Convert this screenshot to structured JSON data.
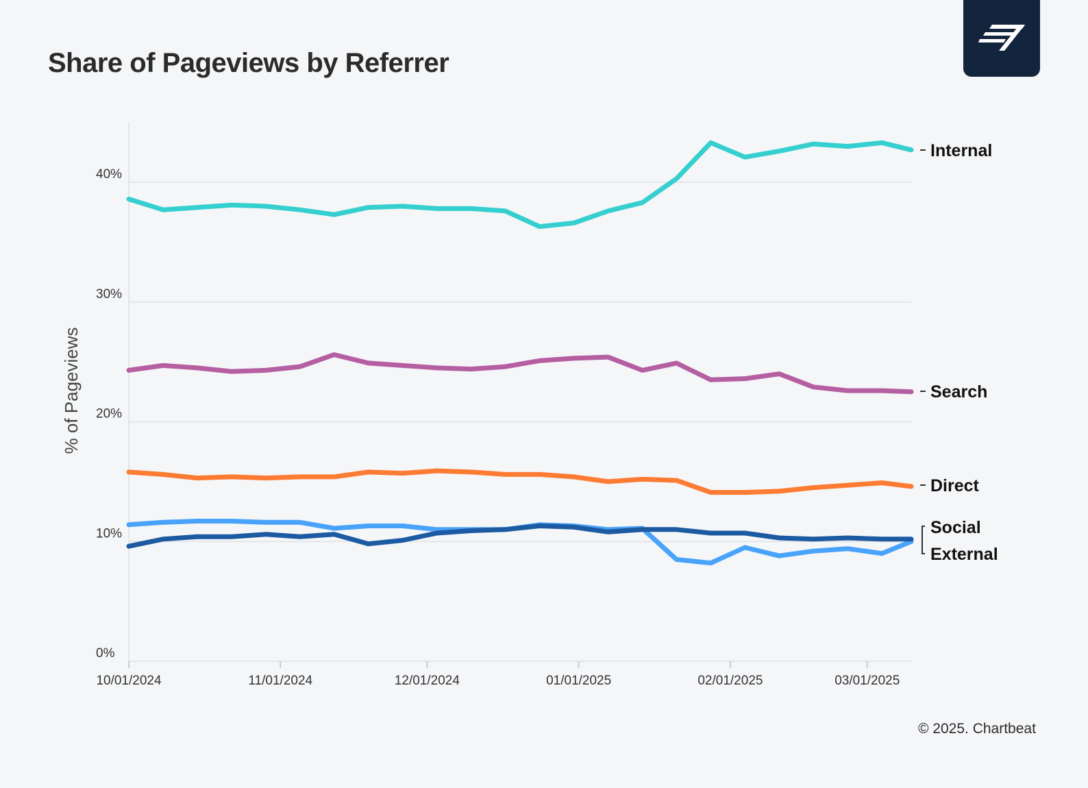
{
  "title": "Share of Pageviews by Referrer",
  "footer": "© 2025. Chartbeat",
  "logo_icon": "chartbeat-logo-icon",
  "chart_data": {
    "type": "line",
    "ylabel": "% of Pageviews",
    "ylim": [
      0,
      45
    ],
    "yticks": [
      0,
      10,
      20,
      30,
      40
    ],
    "ytick_labels": [
      "0%",
      "10%",
      "20%",
      "30%",
      "40%"
    ],
    "xlim": [
      "2024-10-01",
      "2025-03-10"
    ],
    "xtick_dates": [
      "2024-10-01",
      "2024-11-01",
      "2024-12-01",
      "2025-01-01",
      "2025-02-01",
      "2025-03-01"
    ],
    "xtick_labels": [
      "10/01/2024",
      "11/01/2024",
      "12/01/2024",
      "01/01/2025",
      "02/01/2025",
      "03/01/2025"
    ],
    "grid": true,
    "legend": "right-end labels",
    "x": [
      "2024-10-01",
      "2024-10-08",
      "2024-10-15",
      "2024-10-22",
      "2024-10-29",
      "2024-11-05",
      "2024-11-12",
      "2024-11-19",
      "2024-11-26",
      "2024-12-03",
      "2024-12-10",
      "2024-12-17",
      "2024-12-24",
      "2024-12-31",
      "2025-01-07",
      "2025-01-14",
      "2025-01-21",
      "2025-01-28",
      "2025-02-04",
      "2025-02-11",
      "2025-02-18",
      "2025-02-25",
      "2025-03-04",
      "2025-03-10"
    ],
    "series": [
      {
        "name": "Internal",
        "color": "#36cfd0",
        "values": [
          38.6,
          37.7,
          37.9,
          38.1,
          38.0,
          37.7,
          37.3,
          37.9,
          38.0,
          37.8,
          37.8,
          37.6,
          36.3,
          36.6,
          37.6,
          38.3,
          40.3,
          43.3,
          42.1,
          42.6,
          43.2,
          43.0,
          43.3,
          42.7
        ]
      },
      {
        "name": "Search",
        "color": "#b55fa3",
        "values": [
          24.3,
          24.7,
          24.5,
          24.2,
          24.3,
          24.6,
          25.6,
          24.9,
          24.7,
          24.5,
          24.4,
          24.6,
          25.1,
          25.3,
          25.4,
          24.3,
          24.9,
          23.5,
          23.6,
          24.0,
          22.9,
          22.6,
          22.6,
          22.5
        ]
      },
      {
        "name": "Direct",
        "color": "#fd7b32",
        "values": [
          15.8,
          15.6,
          15.3,
          15.4,
          15.3,
          15.4,
          15.4,
          15.8,
          15.7,
          15.9,
          15.8,
          15.6,
          15.6,
          15.4,
          15.0,
          15.2,
          15.1,
          14.1,
          14.1,
          14.2,
          14.5,
          14.7,
          14.9,
          14.6
        ]
      },
      {
        "name": "Social",
        "color": "#4aa3fa",
        "values": [
          11.4,
          11.6,
          11.7,
          11.7,
          11.6,
          11.6,
          11.1,
          11.3,
          11.3,
          11.0,
          11.0,
          11.0,
          11.4,
          11.3,
          11.0,
          11.1,
          8.5,
          8.2,
          9.5,
          8.8,
          9.2,
          9.4,
          9.0,
          10.0
        ]
      },
      {
        "name": "External",
        "color": "#1c5aa2",
        "values": [
          9.6,
          10.2,
          10.4,
          10.4,
          10.6,
          10.4,
          10.6,
          9.8,
          10.1,
          10.7,
          10.9,
          11.0,
          11.3,
          11.2,
          10.8,
          11.0,
          11.0,
          10.7,
          10.7,
          10.3,
          10.2,
          10.3,
          10.2,
          10.2
        ]
      }
    ]
  }
}
